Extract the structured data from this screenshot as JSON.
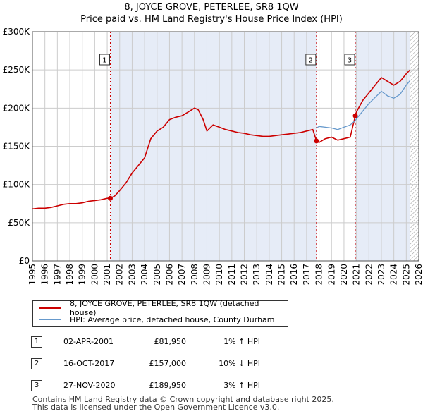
{
  "chart_data": {
    "type": "line",
    "title": "8, JOYCE GROVE, PETERLEE, SR8 1QW",
    "subtitle": "Price paid vs. HM Land Registry's House Price Index (HPI)",
    "xlim": [
      1995,
      2026
    ],
    "ylim": [
      0,
      300000
    ],
    "yticks": [
      {
        "value": 0,
        "label": "£0"
      },
      {
        "value": 50000,
        "label": "£50K"
      },
      {
        "value": 100000,
        "label": "£100K"
      },
      {
        "value": 150000,
        "label": "£150K"
      },
      {
        "value": 200000,
        "label": "£200K"
      },
      {
        "value": 250000,
        "label": "£250K"
      },
      {
        "value": 300000,
        "label": "£300K"
      }
    ],
    "xticks": [
      "1995",
      "1996",
      "1997",
      "1998",
      "1999",
      "2000",
      "2001",
      "2002",
      "2003",
      "2004",
      "2005",
      "2006",
      "2007",
      "2008",
      "2009",
      "2010",
      "2011",
      "2012",
      "2013",
      "2014",
      "2015",
      "2016",
      "2017",
      "2018",
      "2019",
      "2020",
      "2021",
      "2022",
      "2023",
      "2024",
      "2025",
      "2026"
    ],
    "shaded_ranges": [
      [
        2001.25,
        2017.79
      ],
      [
        2020.91,
        2025.3
      ]
    ],
    "hatch_from": 2025.3,
    "series": [
      {
        "name": "8, JOYCE GROVE, PETERLEE, SR8 1QW (detached house)",
        "color": "#cc0000",
        "x": [
          1995,
          1995.5,
          1996,
          1996.5,
          1997,
          1997.5,
          1998,
          1998.5,
          1999,
          1999.5,
          2000,
          2000.5,
          2001,
          2001.25,
          2001.6,
          2002,
          2002.5,
          2003,
          2003.5,
          2004,
          2004.5,
          2005,
          2005.5,
          2006,
          2006.5,
          2007,
          2007.5,
          2008,
          2008.3,
          2008.7,
          2009,
          2009.5,
          2010,
          2010.5,
          2011,
          2011.5,
          2012,
          2012.5,
          2013,
          2013.5,
          2014,
          2014.5,
          2015,
          2015.5,
          2016,
          2016.5,
          2017,
          2017.5,
          2017.79,
          2018,
          2018.5,
          2019,
          2019.5,
          2020,
          2020.5,
          2020.91,
          2021,
          2021.5,
          2022,
          2022.5,
          2023,
          2023.5,
          2024,
          2024.5,
          2025,
          2025.3
        ],
        "y": [
          68000,
          69000,
          69000,
          70000,
          72000,
          74000,
          75000,
          75000,
          76000,
          78000,
          79000,
          80000,
          82000,
          81950,
          85000,
          92000,
          102000,
          115000,
          125000,
          135000,
          160000,
          170000,
          175000,
          185000,
          188000,
          190000,
          195000,
          200000,
          198000,
          185000,
          170000,
          178000,
          175000,
          172000,
          170000,
          168000,
          167000,
          165000,
          164000,
          163000,
          163000,
          164000,
          165000,
          166000,
          167000,
          168000,
          170000,
          172000,
          157000,
          155000,
          160000,
          162000,
          158000,
          160000,
          162000,
          189950,
          195000,
          210000,
          220000,
          230000,
          240000,
          235000,
          230000,
          235000,
          245000,
          250000
        ]
      },
      {
        "name": "HPI: Average price, detached house, County Durham",
        "color": "#6699cc",
        "x": [
          2017.79,
          2018,
          2018.5,
          2019,
          2019.5,
          2020,
          2020.5,
          2020.91,
          2021,
          2021.5,
          2022,
          2022.5,
          2023,
          2023.5,
          2024,
          2024.5,
          2025,
          2025.3
        ],
        "y": [
          174000,
          176000,
          175000,
          174000,
          172000,
          175000,
          178000,
          184000,
          186000,
          196000,
          206000,
          214000,
          222000,
          216000,
          213000,
          218000,
          230000,
          236000
        ]
      }
    ],
    "markers": [
      {
        "label": "1",
        "x": 2001.25,
        "y": 81950
      },
      {
        "label": "2",
        "x": 2017.79,
        "y": 157000
      },
      {
        "label": "3",
        "x": 2020.91,
        "y": 189950
      }
    ]
  },
  "legend": {
    "red_label": "8, JOYCE GROVE, PETERLEE, SR8 1QW (detached house)",
    "blue_label": "HPI: Average price, detached house, County Durham"
  },
  "transactions": [
    {
      "num": "1",
      "date": "02-APR-2001",
      "price": "£81,950",
      "hpi": "1% ↑ HPI"
    },
    {
      "num": "2",
      "date": "16-OCT-2017",
      "price": "£157,000",
      "hpi": "10% ↓ HPI"
    },
    {
      "num": "3",
      "date": "27-NOV-2020",
      "price": "£189,950",
      "hpi": "3% ↑ HPI"
    }
  ],
  "footer": {
    "line1": "Contains HM Land Registry data © Crown copyright and database right 2025.",
    "line2": "This data is licensed under the Open Government Licence v3.0."
  }
}
